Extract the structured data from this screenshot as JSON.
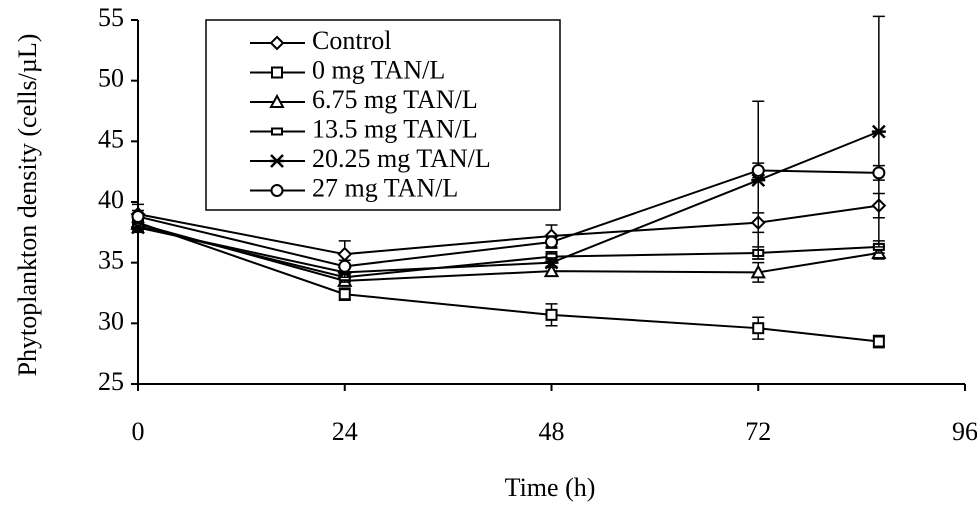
{
  "chart_data": {
    "type": "line",
    "x_label": "Time (h)",
    "y_label": "Phytoplankton density (cells/µL)",
    "x": [
      0,
      24,
      48,
      72,
      86
    ],
    "xlim": [
      0,
      96
    ],
    "xticks": [
      0,
      24,
      48,
      72,
      96
    ],
    "ylim": [
      25,
      55
    ],
    "yticks": [
      25,
      30,
      35,
      40,
      45,
      50,
      55
    ],
    "series": [
      {
        "name": "Control",
        "color": "#000000",
        "marker": "diamond",
        "values": [
          39,
          35.7,
          37.2,
          38.3,
          39.7
        ],
        "errors": [
          0.8,
          1.1,
          0.9,
          0.8,
          1.0
        ]
      },
      {
        "name": "0 mg TAN/L",
        "color": "#000000",
        "marker": "square",
        "values": [
          38.3,
          32.4,
          30.7,
          29.6,
          28.5
        ],
        "errors": [
          0.5,
          0.5,
          0.9,
          0.9,
          0.5
        ]
      },
      {
        "name": "6.75 mg TAN/L",
        "color": "#000000",
        "marker": "triangle",
        "values": [
          38.2,
          33.5,
          34.3,
          34.2,
          35.8
        ],
        "errors": [
          0.4,
          0.4,
          0.4,
          0.8,
          0.5
        ]
      },
      {
        "name": "13.5 mg TAN/L",
        "color": "#000000",
        "marker": "rect",
        "values": [
          38,
          33.8,
          35.5,
          35.8,
          36.3
        ],
        "errors": [
          0.4,
          0.4,
          0.4,
          0.5,
          0.5
        ]
      },
      {
        "name": "20.25 mg TAN/L",
        "color": "#000000",
        "marker": "star",
        "values": [
          37.9,
          34.2,
          35,
          41.8,
          45.8
        ],
        "errors": [
          0.4,
          0.4,
          0.4,
          6.5,
          9.5
        ]
      },
      {
        "name": "27 mg TAN/L",
        "color": "#000000",
        "marker": "circle",
        "values": [
          38.8,
          34.7,
          36.7,
          42.6,
          42.4
        ],
        "errors": [
          0.5,
          0.5,
          0.5,
          0.6,
          0.6
        ]
      }
    ]
  }
}
